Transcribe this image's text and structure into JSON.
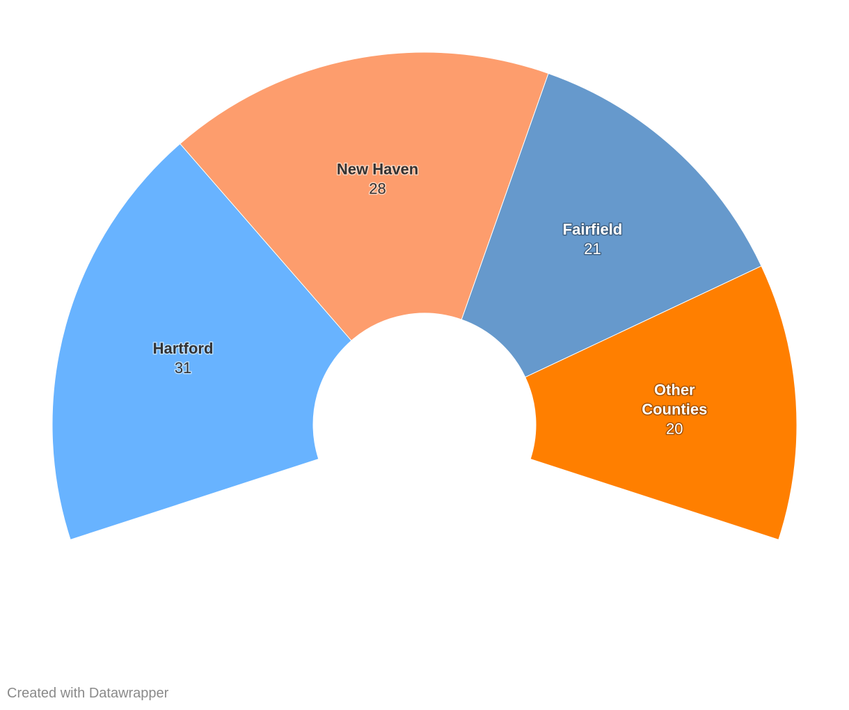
{
  "chart_data": {
    "type": "pie",
    "variant": "semi-donut",
    "categories": [
      "Hartford",
      "New Haven",
      "Fairfield",
      "Other Counties"
    ],
    "values": [
      31,
      28,
      21,
      20
    ],
    "colors": [
      "#68b3ff",
      "#fd9d6d",
      "#6699cc",
      "#ff7f00"
    ],
    "label_colors": [
      "dark",
      "dark",
      "light",
      "light"
    ],
    "label_lines": [
      [
        "Hartford"
      ],
      [
        "New Haven"
      ],
      [
        "Fairfield"
      ],
      [
        "Other",
        "Counties"
      ]
    ]
  },
  "footer": {
    "credit": "Created with Datawrapper"
  }
}
